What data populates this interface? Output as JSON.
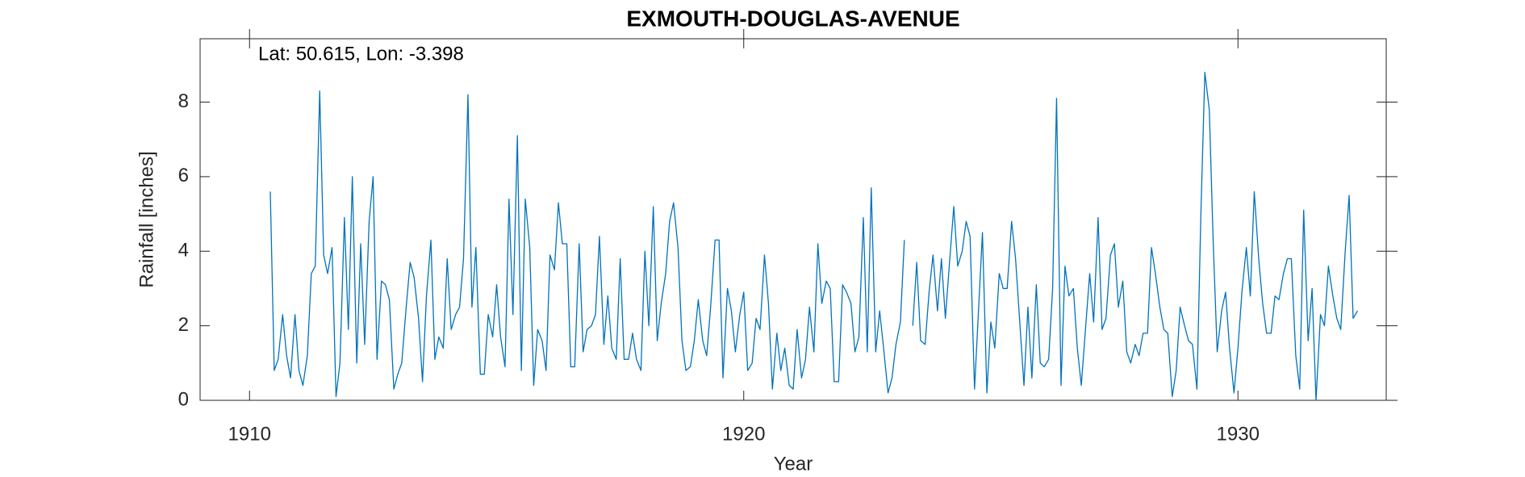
{
  "chart_data": {
    "type": "line",
    "title": "EXMOUTH-DOUGLAS-AVENUE",
    "annotation": "Lat: 50.615, Lon: -3.398",
    "xlabel": "Year",
    "ylabel": "Rainfall [inches]",
    "color": "#0072bd",
    "grid": false,
    "xlim": [
      1909,
      1933
    ],
    "xticks": [
      1910,
      1920,
      1930
    ],
    "ylim": [
      0,
      9.7
    ],
    "yticks": [
      0,
      2,
      4,
      6,
      8
    ],
    "x": [
      1910.42,
      1910.5,
      1910.58,
      1910.67,
      1910.75,
      1910.83,
      1910.92,
      1911,
      1911.08,
      1911.17,
      1911.25,
      1911.33,
      1911.42,
      1911.5,
      1911.58,
      1911.67,
      1911.75,
      1911.83,
      1911.92,
      1912,
      1912.08,
      1912.17,
      1912.25,
      1912.33,
      1912.42,
      1912.5,
      1912.58,
      1912.67,
      1912.75,
      1912.83,
      1912.92,
      1913,
      1913.08,
      1913.17,
      1913.25,
      1913.33,
      1913.42,
      1913.5,
      1913.58,
      1913.67,
      1913.75,
      1913.83,
      1913.92,
      1914,
      1914.08,
      1914.17,
      1914.25,
      1914.33,
      1914.42,
      1914.5,
      1914.58,
      1914.67,
      1914.75,
      1914.83,
      1914.92,
      1915,
      1915.08,
      1915.17,
      1915.25,
      1915.33,
      1915.42,
      1915.5,
      1915.58,
      1915.67,
      1915.75,
      1915.83,
      1915.92,
      1916,
      1916.08,
      1916.17,
      1916.25,
      1916.33,
      1916.42,
      1916.5,
      1916.58,
      1916.67,
      1916.75,
      1916.83,
      1916.92,
      1917,
      1917.08,
      1917.17,
      1917.25,
      1917.33,
      1917.42,
      1917.5,
      1917.58,
      1917.67,
      1917.75,
      1917.83,
      1917.92,
      1918,
      1918.08,
      1918.17,
      1918.25,
      1918.33,
      1918.42,
      1918.5,
      1918.58,
      1918.67,
      1918.75,
      1918.83,
      1918.92,
      1919,
      1919.08,
      1919.17,
      1919.25,
      1919.33,
      1919.42,
      1919.5,
      1919.58,
      1919.67,
      1919.75,
      1919.83,
      1919.92,
      1920,
      1920.08,
      1920.17,
      1920.25,
      1920.33,
      1920.42,
      1920.5,
      1920.58,
      1920.67,
      1920.75,
      1920.83,
      1920.92,
      1921,
      1921.08,
      1921.17,
      1921.25,
      1921.33,
      1921.42,
      1921.5,
      1921.58,
      1921.67,
      1921.75,
      1921.83,
      1921.92,
      1922,
      1922.08,
      1922.17,
      1922.25,
      1922.33,
      1922.42,
      1922.5,
      1922.58,
      1922.67,
      1922.75,
      1922.83,
      1922.92,
      1923,
      1923.08,
      1923.17,
      1923.25,
      1923.33,
      1923.42,
      1923.5,
      1923.58,
      1923.67,
      1923.75,
      1923.83,
      1923.92,
      1924,
      1924.08,
      1924.17,
      1924.25,
      1924.33,
      1924.42,
      1924.5,
      1924.58,
      1924.67,
      1924.75,
      1924.83,
      1924.92,
      1925,
      1925.08,
      1925.17,
      1925.25,
      1925.33,
      1925.42,
      1925.5,
      1925.58,
      1925.67,
      1925.75,
      1925.83,
      1925.92,
      1926,
      1926.08,
      1926.17,
      1926.25,
      1926.33,
      1926.42,
      1926.5,
      1926.58,
      1926.67,
      1926.75,
      1926.83,
      1926.92,
      1927,
      1927.08,
      1927.17,
      1927.25,
      1927.33,
      1927.42,
      1927.5,
      1927.58,
      1927.67,
      1927.75,
      1927.83,
      1927.92,
      1928,
      1928.08,
      1928.17,
      1928.25,
      1928.33,
      1928.42,
      1928.5,
      1928.58,
      1928.67,
      1928.75,
      1928.83,
      1928.92,
      1929,
      1929.08,
      1929.17,
      1929.25,
      1929.33,
      1929.42,
      1929.5,
      1929.58,
      1929.67,
      1929.75,
      1929.83,
      1929.92,
      1930,
      1930.08,
      1930.17,
      1930.25,
      1930.33,
      1930.42,
      1930.5,
      1930.58,
      1930.67,
      1930.75,
      1930.83,
      1930.92,
      1931,
      1931.08,
      1931.17,
      1931.25,
      1931.33,
      1931.42,
      1931.5,
      1931.58,
      1931.67,
      1931.75,
      1931.83,
      1931.92,
      1932,
      1932.08,
      1932.17,
      1932.25,
      1932.33,
      1932.42
    ],
    "values": [
      5.6,
      0.8,
      1.1,
      2.3,
      1.2,
      0.6,
      2.3,
      0.8,
      0.4,
      1.2,
      3.4,
      3.6,
      8.3,
      3.9,
      3.4,
      4.1,
      0.1,
      1.0,
      4.9,
      1.9,
      6.0,
      1.0,
      4.2,
      1.5,
      4.8,
      6.0,
      1.1,
      3.2,
      3.1,
      2.7,
      0.3,
      0.7,
      1.0,
      2.5,
      3.7,
      3.3,
      2.2,
      0.5,
      2.8,
      4.3,
      1.1,
      1.7,
      1.4,
      3.8,
      1.9,
      2.3,
      2.5,
      3.8,
      8.2,
      2.5,
      4.1,
      0.7,
      0.7,
      2.3,
      1.7,
      3.1,
      1.7,
      0.9,
      5.4,
      2.3,
      7.1,
      0.8,
      5.4,
      4.1,
      0.4,
      1.9,
      1.6,
      0.8,
      3.9,
      3.5,
      5.3,
      4.2,
      4.2,
      0.9,
      0.9,
      4.2,
      1.3,
      1.9,
      2.0,
      2.3,
      4.4,
      1.5,
      2.8,
      1.4,
      1.1,
      3.8,
      1.1,
      1.1,
      1.8,
      1.1,
      0.8,
      4.0,
      2.0,
      5.2,
      1.6,
      2.6,
      3.4,
      4.8,
      5.3,
      4.1,
      1.6,
      0.8,
      0.9,
      1.6,
      2.7,
      1.6,
      1.2,
      2.5,
      4.3,
      4.3,
      0.6,
      3.0,
      2.4,
      1.3,
      2.3,
      2.9,
      0.8,
      1.0,
      2.2,
      1.9,
      3.9,
      2.6,
      0.3,
      1.8,
      0.8,
      1.4,
      0.4,
      0.3,
      1.9,
      0.6,
      1.1,
      2.5,
      1.3,
      4.2,
      2.6,
      3.2,
      3.0,
      0.5,
      0.5,
      3.1,
      2.9,
      2.6,
      1.3,
      1.7,
      4.9,
      1.3,
      5.7,
      1.3,
      2.4,
      1.4,
      0.2,
      0.6,
      1.5,
      2.1,
      4.3,
      null,
      2.0,
      3.7,
      1.6,
      1.5,
      2.9,
      3.9,
      2.4,
      3.8,
      2.2,
      3.8,
      5.2,
      3.6,
      4.0,
      4.8,
      4.4,
      0.3,
      2.4,
      4.5,
      0.2,
      2.1,
      1.4,
      3.4,
      3.0,
      3.0,
      4.8,
      3.8,
      2.2,
      0.4,
      2.5,
      0.6,
      3.1,
      1.0,
      0.9,
      1.1,
      3.0,
      8.1,
      0.4,
      3.6,
      2.8,
      3.0,
      1.4,
      0.4,
      2.0,
      3.4,
      2.1,
      4.9,
      1.9,
      2.2,
      3.9,
      4.2,
      2.5,
      3.2,
      1.3,
      1.0,
      1.5,
      1.2,
      1.8,
      1.8,
      4.1,
      3.4,
      2.5,
      1.9,
      1.8,
      0.1,
      0.8,
      2.5,
      2.0,
      1.6,
      1.5,
      0.3,
      5.0,
      8.8,
      7.8,
      4.2,
      1.3,
      2.4,
      2.9,
      1.4,
      0.2,
      1.4,
      2.9,
      4.1,
      2.8,
      5.6,
      3.8,
      2.6,
      1.8,
      1.8,
      2.8,
      2.7,
      3.4,
      3.8,
      3.8,
      1.2,
      0.3,
      5.1,
      1.6,
      3.0,
      0.0,
      2.3,
      2.0,
      3.6,
      2.8,
      2.2,
      1.9,
      4.0,
      5.5,
      2.2,
      2.4
    ]
  }
}
